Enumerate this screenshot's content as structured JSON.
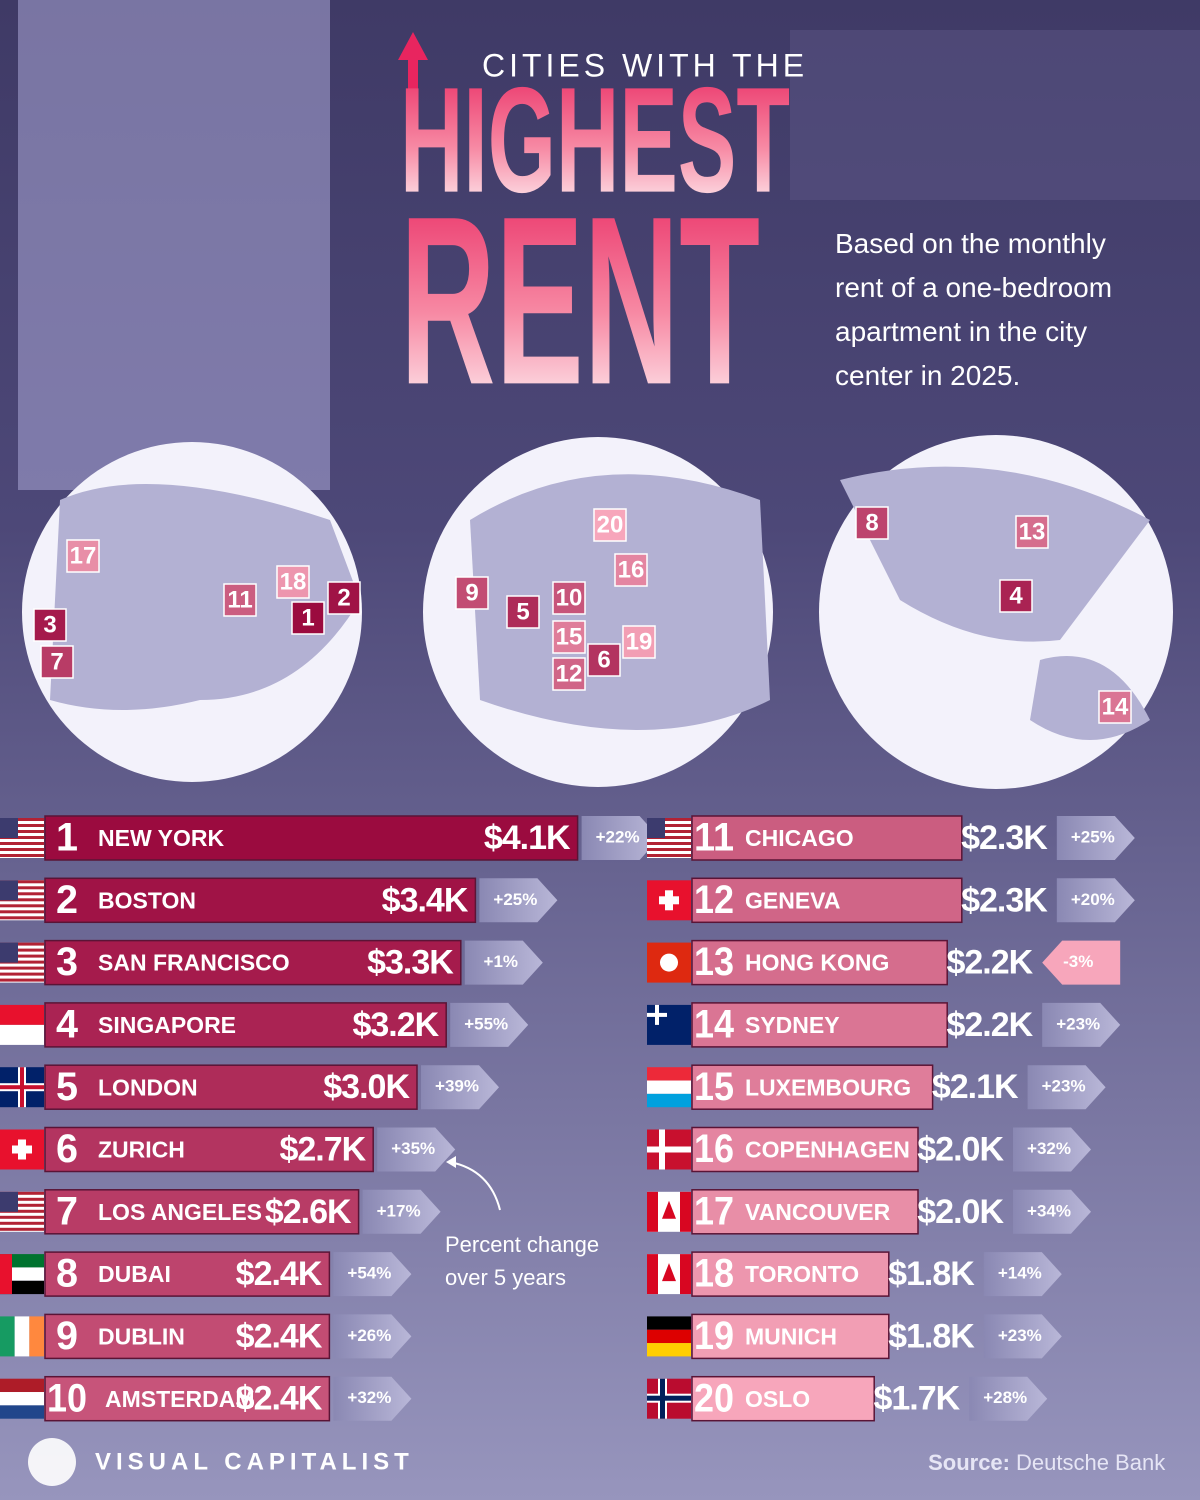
{
  "chart_data": {
    "type": "bar",
    "orientation": "horizontal",
    "title": [
      "CITIES WITH THE",
      "HIGHEST",
      "RENT"
    ],
    "subtitle": "Based on the monthly rent of a one-bedroom apartment in the city center in 2025.",
    "annotation": "Percent change over 5 years",
    "ranks": [
      1,
      2,
      3,
      4,
      5,
      6,
      7,
      8,
      9,
      10,
      11,
      12,
      13,
      14,
      15,
      16,
      17,
      18,
      19,
      20
    ],
    "categories": [
      "NEW YORK",
      "BOSTON",
      "SAN FRANCISCO",
      "SINGAPORE",
      "LONDON",
      "ZURICH",
      "LOS ANGELES",
      "DUBAI",
      "DUBLIN",
      "AMSTERDAM",
      "CHICAGO",
      "GENEVA",
      "HONG KONG",
      "SYDNEY",
      "LUXEMBOURG",
      "COPENHAGEN",
      "VANCOUVER",
      "TORONTO",
      "MUNICH",
      "OSLO"
    ],
    "values": [
      4.1,
      3.4,
      3.3,
      3.2,
      3.0,
      2.7,
      2.6,
      2.4,
      2.4,
      2.4,
      2.3,
      2.3,
      2.2,
      2.2,
      2.1,
      2.0,
      2.0,
      1.8,
      1.8,
      1.7
    ],
    "value_labels": [
      "$4.1K",
      "$3.4K",
      "$3.3K",
      "$3.2K",
      "$3.0K",
      "$2.7K",
      "$2.6K",
      "$2.4K",
      "$2.4K",
      "$2.4K",
      "$2.3K",
      "$2.3K",
      "$2.2K",
      "$2.2K",
      "$2.1K",
      "$2.0K",
      "$2.0K",
      "$1.8K",
      "$1.8K",
      "$1.7K"
    ],
    "changes": [
      22,
      25,
      1,
      55,
      39,
      35,
      17,
      54,
      26,
      32,
      25,
      20,
      -3,
      23,
      23,
      32,
      34,
      14,
      23,
      28
    ],
    "change_labels": [
      "+22%",
      "+25%",
      "+1%",
      "+55%",
      "+39%",
      "+35%",
      "+17%",
      "+54%",
      "+26%",
      "+32%",
      "+25%",
      "+20%",
      "-3%",
      "+23%",
      "+23%",
      "+32%",
      "+34%",
      "+14%",
      "+23%",
      "+28%"
    ],
    "color_range": [
      "#9b0b3f",
      "#f7a6bb"
    ],
    "brand": "VISUAL CAPITALIST",
    "source_label": "Source:",
    "source": "Deutsche Bank"
  }
}
